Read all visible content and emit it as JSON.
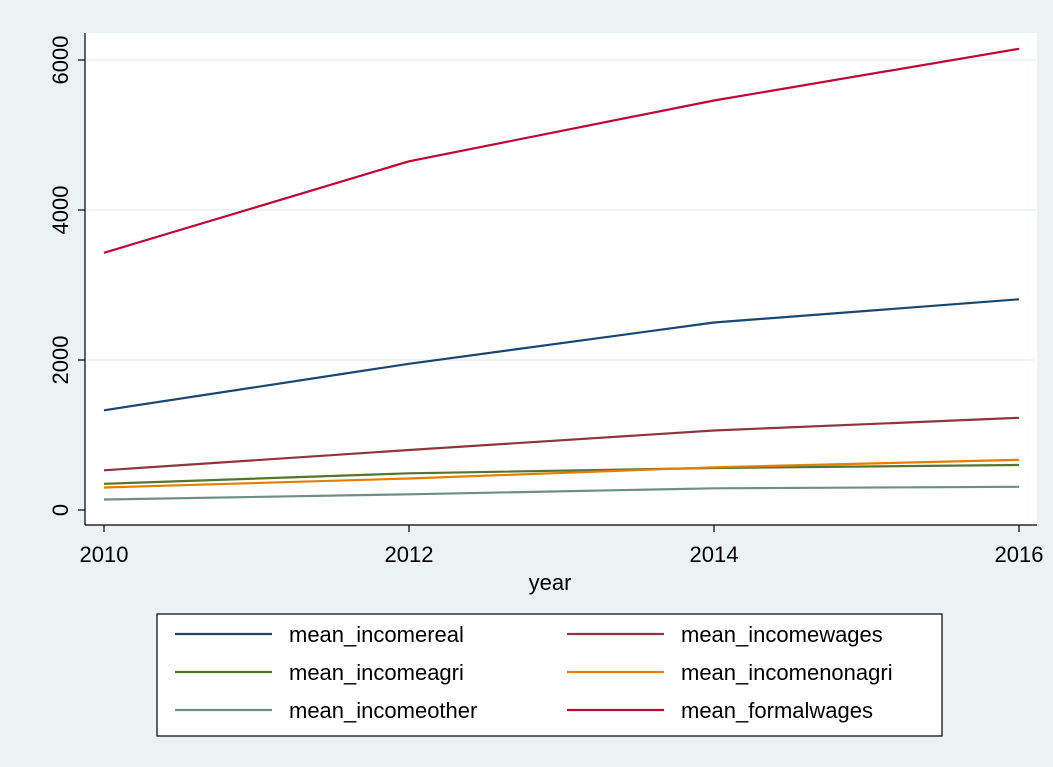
{
  "chart_data": {
    "type": "line",
    "title": "",
    "xlabel": "year",
    "ylabel": "",
    "x": [
      2010,
      2012,
      2014,
      2016
    ],
    "xlim": [
      2010,
      2016
    ],
    "ylim": [
      -200,
      6350
    ],
    "xticks": [
      2010,
      2012,
      2014,
      2016
    ],
    "yticks": [
      0,
      2000,
      4000,
      6000
    ],
    "grid": "horizontal",
    "legend_position": "bottom",
    "series": [
      {
        "name": "mean_incomereal",
        "color": "#1a476f",
        "values": [
          1330,
          1950,
          2500,
          2810
        ]
      },
      {
        "name": "mean_incomewages",
        "color": "#90353b",
        "values": [
          530,
          800,
          1060,
          1230
        ]
      },
      {
        "name": "mean_incomeagri",
        "color": "#55752f",
        "values": [
          350,
          490,
          560,
          600
        ]
      },
      {
        "name": "mean_incomenonagri",
        "color": "#e37e00",
        "values": [
          300,
          420,
          570,
          670
        ]
      },
      {
        "name": "mean_incomeother",
        "color": "#6e8e84",
        "values": [
          140,
          210,
          290,
          310
        ]
      },
      {
        "name": "mean_formalwages",
        "color": "#c10534",
        "values": [
          3430,
          4650,
          5460,
          6150
        ]
      }
    ]
  }
}
